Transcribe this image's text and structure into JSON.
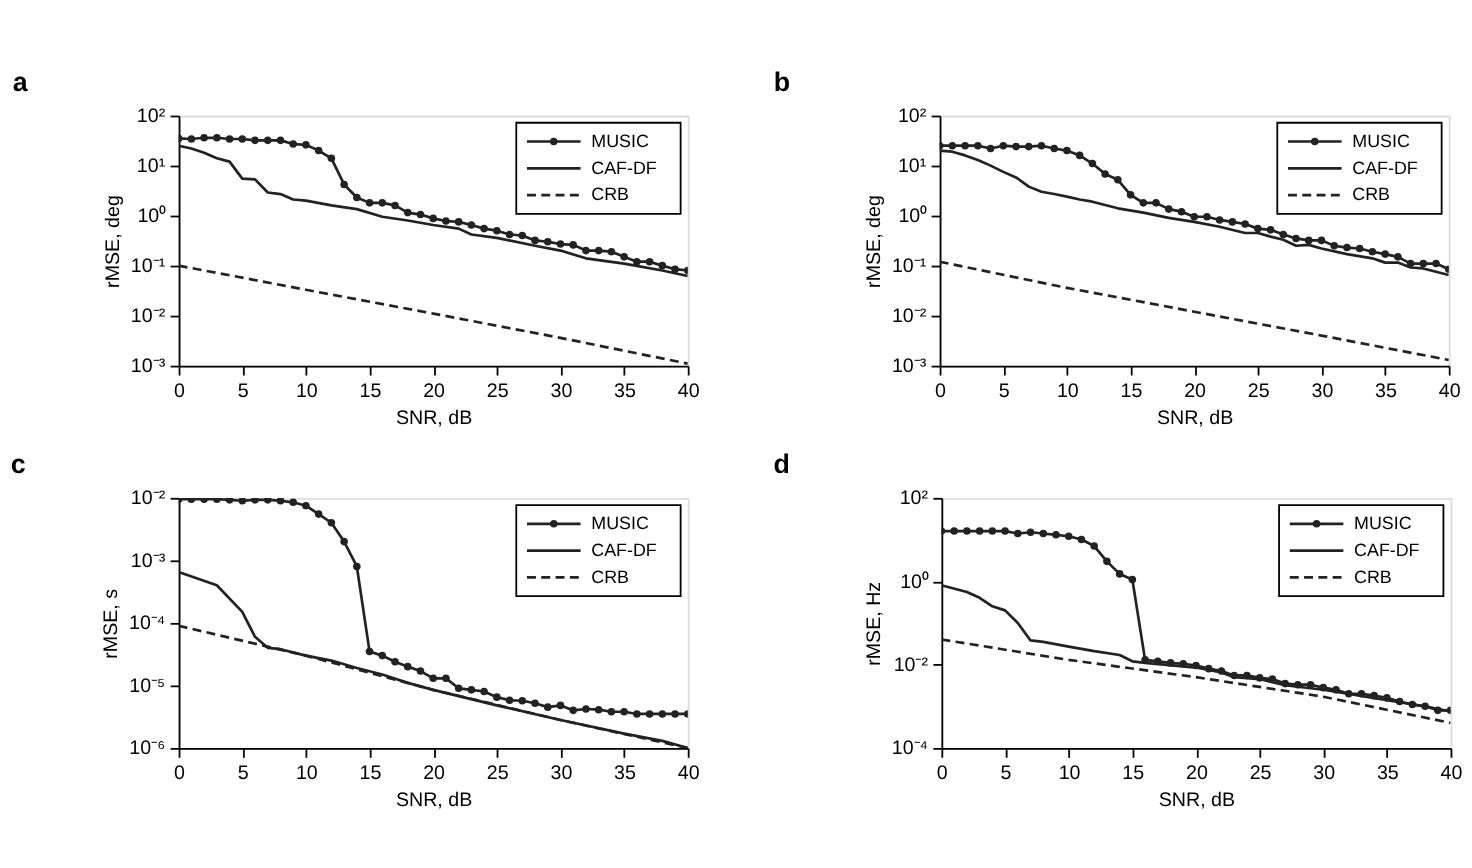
{
  "chart_data": [
    {
      "type": "line",
      "title": "a",
      "xlabel": "SNR, dB",
      "ylabel": "rMSE, deg",
      "log": true,
      "grid": false,
      "legend": "top right",
      "xlim": [
        0,
        40
      ],
      "xticks": [
        0,
        5,
        10,
        15,
        20,
        25,
        30,
        35,
        40
      ],
      "ylim": [
        0.001,
        100
      ],
      "yticks": [
        {
          "value": 0.001,
          "label": "10⁻³"
        },
        {
          "value": 0.01,
          "label": "10⁻²"
        },
        {
          "value": 0.1,
          "label": "10⁻¹"
        },
        {
          "value": 1,
          "label": "10⁰"
        },
        {
          "value": 10,
          "label": "10¹"
        },
        {
          "value": 100,
          "label": "10²"
        }
      ],
      "series": [
        {
          "name": "MUSIC",
          "color": "#222222",
          "marker": "circle",
          "line_style": "solid",
          "x": [
            0,
            1,
            2,
            3,
            4,
            5,
            6,
            7,
            8,
            9,
            10,
            11,
            12,
            13,
            14,
            15,
            16,
            17,
            18,
            19,
            20,
            21,
            22,
            23,
            24,
            25,
            26,
            27,
            28,
            29,
            30,
            31,
            32,
            33,
            34,
            35,
            36,
            37,
            38,
            39,
            40
          ],
          "values": [
            35,
            34,
            36,
            36,
            34,
            34,
            32,
            32,
            32,
            27,
            26,
            20,
            14,
            4.2,
            2.3,
            1.8,
            1.8,
            1.6,
            1.15,
            1.05,
            0.88,
            0.78,
            0.75,
            0.65,
            0.55,
            0.5,
            0.42,
            0.4,
            0.32,
            0.3,
            0.27,
            0.26,
            0.2,
            0.2,
            0.19,
            0.15,
            0.12,
            0.12,
            0.1,
            0.085,
            0.08
          ]
        },
        {
          "name": "CAF-DF",
          "color": "#222222",
          "marker": "none",
          "line_style": "solid",
          "x": [
            0,
            1,
            2,
            3,
            4,
            5,
            6,
            7,
            8,
            9,
            10,
            12,
            14,
            16,
            18,
            20,
            22,
            23,
            25,
            28,
            30,
            32,
            35,
            38,
            40
          ],
          "values": [
            25,
            22,
            18,
            14,
            12,
            5.5,
            5.3,
            2.9,
            2.7,
            2.1,
            2.0,
            1.6,
            1.35,
            0.95,
            0.8,
            0.65,
            0.55,
            0.42,
            0.36,
            0.25,
            0.2,
            0.14,
            0.11,
            0.08,
            0.062
          ]
        },
        {
          "name": "CRB",
          "color": "#222222",
          "marker": "none",
          "line_style": "dashed",
          "x": [
            0,
            10,
            20,
            30,
            40
          ],
          "values": [
            0.1,
            0.033,
            0.011,
            0.0036,
            0.0011
          ]
        }
      ]
    },
    {
      "type": "line",
      "title": "b",
      "xlabel": "SNR, dB",
      "ylabel": "rMSE, deg",
      "log": true,
      "grid": false,
      "legend": "top right",
      "xlim": [
        0,
        40
      ],
      "xticks": [
        0,
        5,
        10,
        15,
        20,
        25,
        30,
        35,
        40
      ],
      "ylim": [
        0.001,
        100
      ],
      "yticks": [
        {
          "value": 0.001,
          "label": "10⁻³"
        },
        {
          "value": 0.01,
          "label": "10⁻²"
        },
        {
          "value": 0.1,
          "label": "10⁻¹"
        },
        {
          "value": 1,
          "label": "10⁰"
        },
        {
          "value": 10,
          "label": "10¹"
        },
        {
          "value": 100,
          "label": "10²"
        }
      ],
      "series": [
        {
          "name": "MUSIC",
          "color": "#222222",
          "marker": "circle",
          "line_style": "solid",
          "x": [
            0,
            1,
            2,
            3,
            4,
            5,
            6,
            7,
            8,
            9,
            10,
            11,
            12,
            13,
            14,
            15,
            16,
            17,
            18,
            19,
            20,
            21,
            22,
            23,
            24,
            25,
            26,
            27,
            28,
            29,
            30,
            31,
            32,
            33,
            34,
            35,
            36,
            37,
            38,
            39,
            40
          ],
          "values": [
            25,
            25,
            25,
            25,
            22,
            25,
            24,
            24,
            25,
            22,
            20,
            16,
            11,
            6.8,
            5.2,
            2.6,
            1.8,
            1.8,
            1.35,
            1.2,
            0.95,
            0.95,
            0.82,
            0.75,
            0.68,
            0.55,
            0.52,
            0.42,
            0.35,
            0.32,
            0.32,
            0.25,
            0.23,
            0.22,
            0.19,
            0.17,
            0.15,
            0.11,
            0.11,
            0.11,
            0.085
          ]
        },
        {
          "name": "CAF-DF",
          "color": "#222222",
          "marker": "none",
          "line_style": "solid",
          "x": [
            0,
            1,
            2,
            3,
            4,
            5,
            6,
            7,
            8,
            9,
            10,
            11,
            12,
            14,
            16,
            18,
            20,
            22,
            24,
            25,
            26,
            27,
            28,
            29,
            30,
            32,
            34,
            35,
            36,
            37,
            38,
            40
          ],
          "values": [
            20,
            19,
            16,
            13,
            10,
            7.5,
            5.8,
            3.8,
            3,
            2.7,
            2.4,
            2.1,
            1.9,
            1.4,
            1.15,
            0.9,
            0.75,
            0.6,
            0.45,
            0.45,
            0.38,
            0.33,
            0.25,
            0.26,
            0.22,
            0.17,
            0.14,
            0.115,
            0.115,
            0.092,
            0.088,
            0.065
          ]
        },
        {
          "name": "CRB",
          "color": "#222222",
          "marker": "none",
          "line_style": "dashed",
          "x": [
            0,
            10,
            20,
            30,
            40
          ],
          "values": [
            0.12,
            0.036,
            0.012,
            0.004,
            0.0013
          ]
        }
      ]
    },
    {
      "type": "line",
      "title": "c",
      "xlabel": "SNR, dB",
      "ylabel": "rMSE, s",
      "log": true,
      "grid": false,
      "legend": "top right",
      "xlim": [
        0,
        40
      ],
      "xticks": [
        0,
        5,
        10,
        15,
        20,
        25,
        30,
        35,
        40
      ],
      "ylim": [
        1e-06,
        0.01
      ],
      "yticks": [
        {
          "value": 1e-06,
          "label": "10⁻⁶"
        },
        {
          "value": 1e-05,
          "label": "10⁻⁵"
        },
        {
          "value": 0.0001,
          "label": "10⁻⁴"
        },
        {
          "value": 0.001,
          "label": "10⁻³"
        },
        {
          "value": 0.01,
          "label": "10⁻²"
        }
      ],
      "series": [
        {
          "name": "MUSIC",
          "color": "#222222",
          "marker": "circle",
          "line_style": "solid",
          "x": [
            0,
            1,
            2,
            3,
            4,
            5,
            6,
            7,
            8,
            9,
            10,
            11,
            12,
            13,
            14,
            15,
            16,
            17,
            18,
            19,
            20,
            21,
            22,
            23,
            24,
            25,
            26,
            27,
            28,
            29,
            30,
            31,
            32,
            33,
            34,
            35,
            36,
            37,
            38,
            39,
            40
          ],
          "values": [
            0.0095,
            0.0095,
            0.0095,
            0.0095,
            0.0093,
            0.009,
            0.0093,
            0.0093,
            0.009,
            0.0085,
            0.0075,
            0.0055,
            0.004,
            0.002,
            0.0008,
            3.5e-05,
            3e-05,
            2.4e-05,
            2e-05,
            1.7e-05,
            1.3e-05,
            1.3e-05,
            9e-06,
            8.5e-06,
            8e-06,
            6.5e-06,
            5.8e-06,
            5.7e-06,
            5.2e-06,
            4.5e-06,
            4.8e-06,
            4e-06,
            4.2e-06,
            4.1e-06,
            3.8e-06,
            3.8e-06,
            3.5e-06,
            3.5e-06,
            3.5e-06,
            3.5e-06,
            3.5e-06
          ]
        },
        {
          "name": "CAF-DF",
          "color": "#222222",
          "marker": "none",
          "line_style": "solid",
          "x": [
            0,
            3,
            5,
            6,
            7,
            8,
            10,
            12,
            14,
            16,
            18,
            20,
            25,
            30,
            35,
            38,
            40
          ],
          "values": [
            0.00065,
            0.0004,
            0.00015,
            6e-05,
            4e-05,
            3.8e-05,
            3e-05,
            2.5e-05,
            1.9e-05,
            1.5e-05,
            1.1e-05,
            8.5e-06,
            4.8e-06,
            2.8e-06,
            1.7e-06,
            1.3e-06,
            1e-06
          ]
        },
        {
          "name": "CRB",
          "color": "#222222",
          "marker": "none",
          "line_style": "dashed",
          "x": [
            0,
            10,
            20,
            30,
            40
          ],
          "values": [
            9e-05,
            3e-05,
            8.5e-06,
            2.8e-06,
            1e-06
          ]
        }
      ]
    },
    {
      "type": "line",
      "title": "d",
      "xlabel": "SNR, dB",
      "ylabel": "rMSE, Hz",
      "log": true,
      "grid": false,
      "legend": "top right",
      "xlim": [
        0,
        40
      ],
      "xticks": [
        0,
        5,
        10,
        15,
        20,
        25,
        30,
        35,
        40
      ],
      "ylim": [
        0.0001,
        100
      ],
      "yticks": [
        {
          "value": 0.0001,
          "label": "10⁻⁴"
        },
        {
          "value": 0.01,
          "label": "10⁻²"
        },
        {
          "value": 1,
          "label": "10⁰"
        },
        {
          "value": 100,
          "label": "10²"
        }
      ],
      "series": [
        {
          "name": "MUSIC",
          "color": "#222222",
          "marker": "circle",
          "line_style": "solid",
          "x": [
            0,
            1,
            2,
            3,
            4,
            5,
            6,
            7,
            8,
            9,
            10,
            11,
            12,
            13,
            14,
            15,
            16,
            17,
            18,
            19,
            20,
            21,
            22,
            23,
            24,
            25,
            26,
            27,
            28,
            29,
            30,
            31,
            32,
            33,
            34,
            35,
            36,
            37,
            38,
            39,
            40
          ],
          "values": [
            16,
            16,
            16,
            16,
            16,
            16,
            14,
            15,
            14,
            13,
            12,
            10,
            7,
            3,
            1.5,
            1.1,
            0.013,
            0.012,
            0.011,
            0.0105,
            0.0095,
            0.008,
            0.007,
            0.0055,
            0.0055,
            0.0048,
            0.0045,
            0.0035,
            0.0033,
            0.0033,
            0.0028,
            0.0025,
            0.002,
            0.002,
            0.0018,
            0.0016,
            0.0013,
            0.0011,
            0.001,
            0.0008,
            0.0008
          ]
        },
        {
          "name": "CAF-DF",
          "color": "#222222",
          "marker": "none",
          "line_style": "solid",
          "x": [
            0,
            2,
            3,
            4,
            5,
            6,
            7,
            8,
            10,
            12,
            14,
            15,
            16,
            20,
            22,
            23,
            25,
            27,
            30,
            35,
            38,
            40
          ],
          "values": [
            0.8,
            0.55,
            0.4,
            0.25,
            0.2,
            0.1,
            0.038,
            0.035,
            0.027,
            0.021,
            0.017,
            0.012,
            0.011,
            0.0085,
            0.0065,
            0.005,
            0.0045,
            0.0032,
            0.0025,
            0.0014,
            0.001,
            0.00075
          ]
        },
        {
          "name": "CRB",
          "color": "#222222",
          "marker": "none",
          "line_style": "dashed",
          "x": [
            0,
            10,
            20,
            30,
            40
          ],
          "values": [
            0.04,
            0.013,
            0.005,
            0.0017,
            0.0004
          ]
        }
      ]
    }
  ]
}
